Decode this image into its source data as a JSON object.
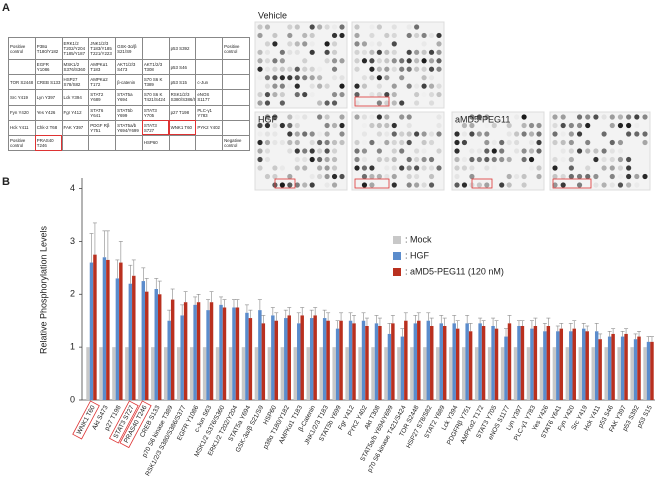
{
  "panel_a": {
    "label": "A",
    "table": {
      "rows": [
        [
          "Positive control",
          "P38α T180/Y182",
          "ERK1/2 T202/Y204 T185/Y187",
          "JNK1/2/3 T183/Y185 T221/Y223",
          "GSK-3α/β S21/S9",
          null,
          "p53 S392",
          null,
          "Positive control"
        ],
        [
          null,
          "EGFR Y1086",
          "MSK1/2 S376/S360",
          "AMPKα1 T183",
          "AKT1/2/3 S473",
          "AKT1/2/3 T308",
          "p53 S46",
          null,
          null
        ],
        [
          "TOR S2448",
          "CREB S133",
          "HSP27 S78/S82",
          "AMPKα2 T172",
          "β-catenin",
          "S70 S6 K T389",
          "p53 S15",
          "c-Jun",
          null
        ],
        [
          "Src Y419",
          "Lyn Y397",
          "Lck Y394",
          "STAT2 Y689",
          "STAT5a Y694",
          "S70 S6 K T421/S424",
          "RSK1/2/3 S380/S386/S377",
          "eNOS S1177",
          null
        ],
        [
          "Fyn Y420",
          "Yes Y426",
          "Fgr Y412",
          "STAT6 Y641",
          "STAT5b Y699",
          "STAT3 Y705",
          "p27 T198",
          "PLC-γ1 Y783",
          null
        ],
        [
          "Hck Y411",
          "Chk-2 T68",
          "FAK Y397",
          "PDGF Rβ Y751",
          "STAT5a/b Y694/Y699",
          "STAT3 S727",
          "WNK1 T60",
          "PYK2 Y402",
          null
        ],
        [
          "Positive control",
          "PRAS40 T246",
          null,
          null,
          null,
          "HSP60",
          null,
          null,
          "Negative control"
        ]
      ],
      "highlighted_cells": [
        [
          6,
          1
        ],
        [
          5,
          5
        ],
        [
          5,
          6
        ]
      ]
    },
    "blots": [
      {
        "label": "Vehicle"
      },
      {
        "label": "HGF"
      },
      {
        "label": "aMD5-PEG11"
      }
    ]
  },
  "panel_b": {
    "label": "B"
  },
  "chart_data": {
    "type": "bar",
    "y_label": "Relative Phosphorylation Levels",
    "categories": [
      "WNK1 T60",
      "Akt S473",
      "p27 T198",
      "STAT3 S727",
      "PRAS40 T246",
      "CREB S133",
      "p70 S6 kinase T389",
      "RSK1/2/3 S380/S386/S377",
      "EGFR Y1086",
      "c-Jun S63",
      "MSK1/2 S376/S360",
      "ERK1/2 T202/Y204",
      "STAT5a Y694",
      "GSK-3α/β S21/S9",
      "HSP60",
      "p38α T180/Y182",
      "AMPKα1 T183",
      "β-Catenin",
      "JNK1/2/3 T183",
      "STAT5b Y699",
      "Fgr Y412",
      "PYK2 Y402",
      "Akt T308",
      "STAT5a/b Y694/Y699",
      "p70 S6 kinase T421/S424",
      "TOR S2448",
      "HSP27 S78/S82",
      "STAT2 Y689",
      "Lck Y394",
      "PDGFRβ Y751",
      "AMPKα2 T172",
      "STAT3 Y705",
      "eNOS S1177",
      "Lyn Y397",
      "PLC-γ1 Y783",
      "Yes Y426",
      "STAT6 Y641",
      "Fyn Y420",
      "Src Y419",
      "Hck Y411",
      "p53 S46",
      "FAK Y397",
      "p53 S392",
      "p53 S15"
    ],
    "highlight": [
      0,
      3,
      4
    ],
    "series": [
      {
        "name": ": Mock",
        "color": "#c8c8c8",
        "values": [
          1,
          1,
          1,
          1,
          1,
          1,
          1,
          1,
          1,
          1,
          1,
          1,
          1,
          1,
          1,
          1,
          1,
          1,
          1,
          1,
          1,
          1,
          1,
          1,
          1,
          1,
          1,
          1,
          1,
          1,
          1,
          1,
          1,
          1,
          1,
          1,
          1,
          1,
          1,
          1,
          1,
          1,
          1,
          1
        ]
      },
      {
        "name": ": HGF",
        "color": "#5b8ccc",
        "values": [
          2.6,
          2.7,
          2.3,
          2.2,
          2.25,
          2.1,
          1.5,
          1.6,
          1.8,
          1.7,
          1.8,
          1.75,
          1.65,
          1.7,
          1.6,
          1.55,
          1.45,
          1.55,
          1.55,
          1.35,
          1.5,
          1.5,
          1.45,
          1.25,
          1.2,
          1.45,
          1.5,
          1.45,
          1.45,
          1.45,
          1.45,
          1.4,
          1.2,
          1.4,
          1.35,
          1.3,
          1.3,
          1.3,
          1.35,
          1.3,
          1.2,
          1.2,
          1.15,
          1.1
        ],
        "errors": [
          0.55,
          0.5,
          0.35,
          0.35,
          0.25,
          0.2,
          0.2,
          0.2,
          0.15,
          0.2,
          0.15,
          0.15,
          0.15,
          0.2,
          0.15,
          0.15,
          0.2,
          0.15,
          0.15,
          0.15,
          0.15,
          0.15,
          0.15,
          0.2,
          0.15,
          0.15,
          0.15,
          0.15,
          0.15,
          0.15,
          0.1,
          0.15,
          0.15,
          0.1,
          0.15,
          0.15,
          0.1,
          0.15,
          0.1,
          0.15,
          0.1,
          0.1,
          0.1,
          0.1
        ]
      },
      {
        "name": ": aMD5-PEG11 (120 nM)",
        "color": "#b9301f",
        "values": [
          2.75,
          2.65,
          2.6,
          2.35,
          2.05,
          2.0,
          1.9,
          1.85,
          1.85,
          1.85,
          1.75,
          1.75,
          1.55,
          1.45,
          1.5,
          1.6,
          1.6,
          1.6,
          1.5,
          1.5,
          1.45,
          1.4,
          1.4,
          1.45,
          1.5,
          1.5,
          1.4,
          1.4,
          1.35,
          1.3,
          1.4,
          1.35,
          1.45,
          1.4,
          1.4,
          1.4,
          1.35,
          1.35,
          1.3,
          1.15,
          1.25,
          1.25,
          1.2,
          1.1
        ],
        "errors": [
          0.6,
          0.55,
          0.4,
          0.3,
          0.25,
          0.25,
          0.2,
          0.2,
          0.15,
          0.2,
          0.15,
          0.15,
          0.15,
          0.15,
          0.15,
          0.15,
          0.15,
          0.15,
          0.15,
          0.15,
          0.15,
          0.15,
          0.15,
          0.15,
          0.15,
          0.15,
          0.15,
          0.15,
          0.15,
          0.15,
          0.1,
          0.15,
          0.15,
          0.1,
          0.15,
          0.15,
          0.1,
          0.15,
          0.1,
          0.1,
          0.1,
          0.1,
          0.1,
          0.1
        ]
      }
    ],
    "ylim": [
      0,
      4.2
    ],
    "yticks": [
      0,
      1,
      2,
      3,
      4
    ],
    "grid": false,
    "legend": "upper-right"
  }
}
